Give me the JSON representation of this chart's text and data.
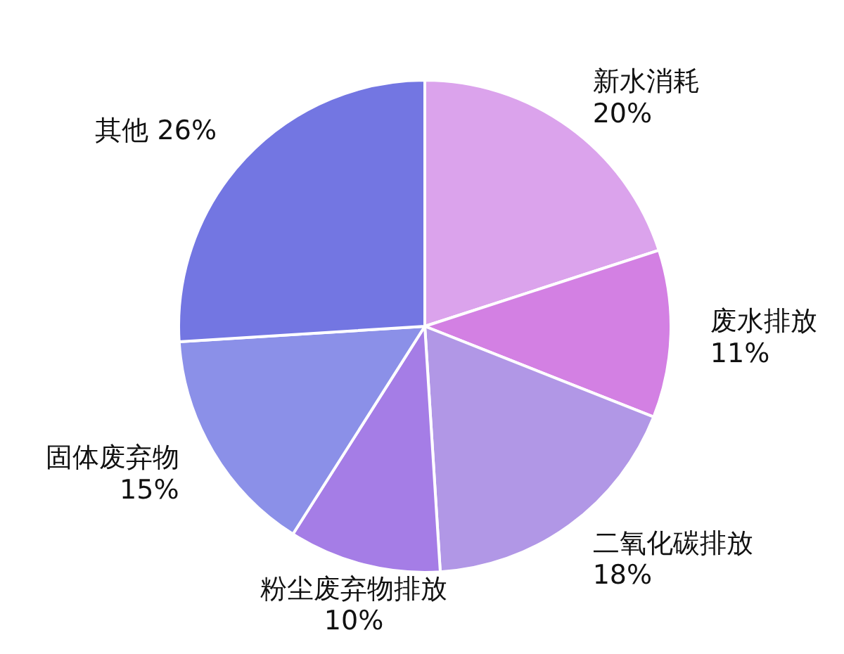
{
  "chart_data": {
    "type": "pie",
    "categories": [
      "新水消耗",
      "废水排放",
      "二氧化碳排放",
      "粉尘废弃物排放",
      "固体废弃物",
      "其他"
    ],
    "values": [
      20,
      11,
      18,
      10,
      15,
      26
    ],
    "value_labels": [
      "20%",
      "11%",
      "18%",
      "10%",
      "15%",
      "26%"
    ],
    "colors": [
      "#dba3ec",
      "#d380e3",
      "#b197e6",
      "#a57de6",
      "#8b90e8",
      "#7376e2"
    ],
    "legend": false
  }
}
